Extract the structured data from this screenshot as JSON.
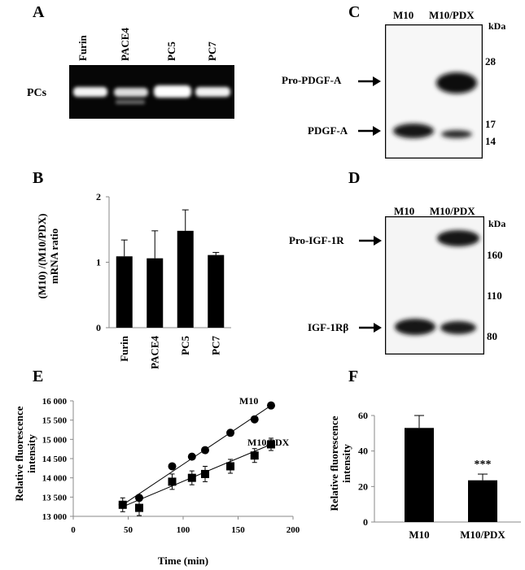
{
  "panels": {
    "A": {
      "letter": "A",
      "lanes": [
        "Furin",
        "PACE4",
        "PC5",
        "PC7"
      ],
      "row_label": "PCs"
    },
    "B": {
      "letter": "B",
      "ylabel_line1": "(M10) /(M10/PDX)",
      "ylabel_line2": "mRNA ratio"
    },
    "C": {
      "letter": "C",
      "lanes": [
        "M10",
        "M10/PDX"
      ],
      "kda": "kDa",
      "markers": [
        "28",
        "17",
        "14"
      ],
      "bands": [
        "Pro-PDGF-A",
        "PDGF-A"
      ]
    },
    "D": {
      "letter": "D",
      "lanes": [
        "M10",
        "M10/PDX"
      ],
      "kda": "kDa",
      "markers": [
        "160",
        "110",
        "80"
      ],
      "bands": [
        "Pro-IGF-1R",
        "IGF-1Rβ"
      ]
    },
    "E": {
      "letter": "E"
    },
    "F": {
      "letter": "F"
    }
  },
  "chart_data": [
    {
      "panel": "B",
      "type": "bar",
      "categories": [
        "Furin",
        "PACE4",
        "PC5",
        "PC7"
      ],
      "values": [
        1.09,
        1.06,
        1.48,
        1.11
      ],
      "errors": [
        0.25,
        0.42,
        0.32,
        0.04
      ],
      "ylabel": "(M10) /(M10/PDX) mRNA ratio",
      "ylim": [
        0,
        2
      ],
      "yticks": [
        "0",
        "1",
        "2"
      ],
      "color": "#000000"
    },
    {
      "panel": "E",
      "type": "line",
      "xlabel": "Time (min)",
      "ylabel": "Relative fluorescence intensity",
      "xlim": [
        0,
        200
      ],
      "ylim": [
        13000,
        16000
      ],
      "xticks": [
        "0",
        "50",
        "100",
        "150",
        "200"
      ],
      "yticks": [
        "13 000",
        "13 500",
        "14 000",
        "14 500",
        "15 000",
        "15 500",
        "16 000"
      ],
      "series": [
        {
          "name": "M10",
          "marker": "circle",
          "x": [
            45,
            60,
            90,
            108,
            120,
            143,
            165,
            180
          ],
          "y": [
            13300,
            13480,
            14300,
            14550,
            14720,
            15170,
            15520,
            15880
          ],
          "err": [
            0,
            0,
            0,
            0,
            0,
            0,
            0,
            0
          ]
        },
        {
          "name": "M10/PDX",
          "marker": "square",
          "x": [
            45,
            60,
            90,
            108,
            120,
            143,
            165,
            180
          ],
          "y": [
            13300,
            13220,
            13900,
            14000,
            14100,
            14300,
            14580,
            14870
          ],
          "err": [
            180,
            200,
            200,
            180,
            200,
            180,
            180,
            160
          ]
        }
      ]
    },
    {
      "panel": "F",
      "type": "bar",
      "categories": [
        "M10",
        "M10/PDX"
      ],
      "values": [
        53,
        23.5
      ],
      "errors": [
        7,
        3.5
      ],
      "ylabel": "Relative fluorescence intensity",
      "ylim": [
        0,
        60
      ],
      "yticks": [
        "0",
        "20",
        "40",
        "60"
      ],
      "annotation": "***",
      "color": "#000000"
    }
  ]
}
